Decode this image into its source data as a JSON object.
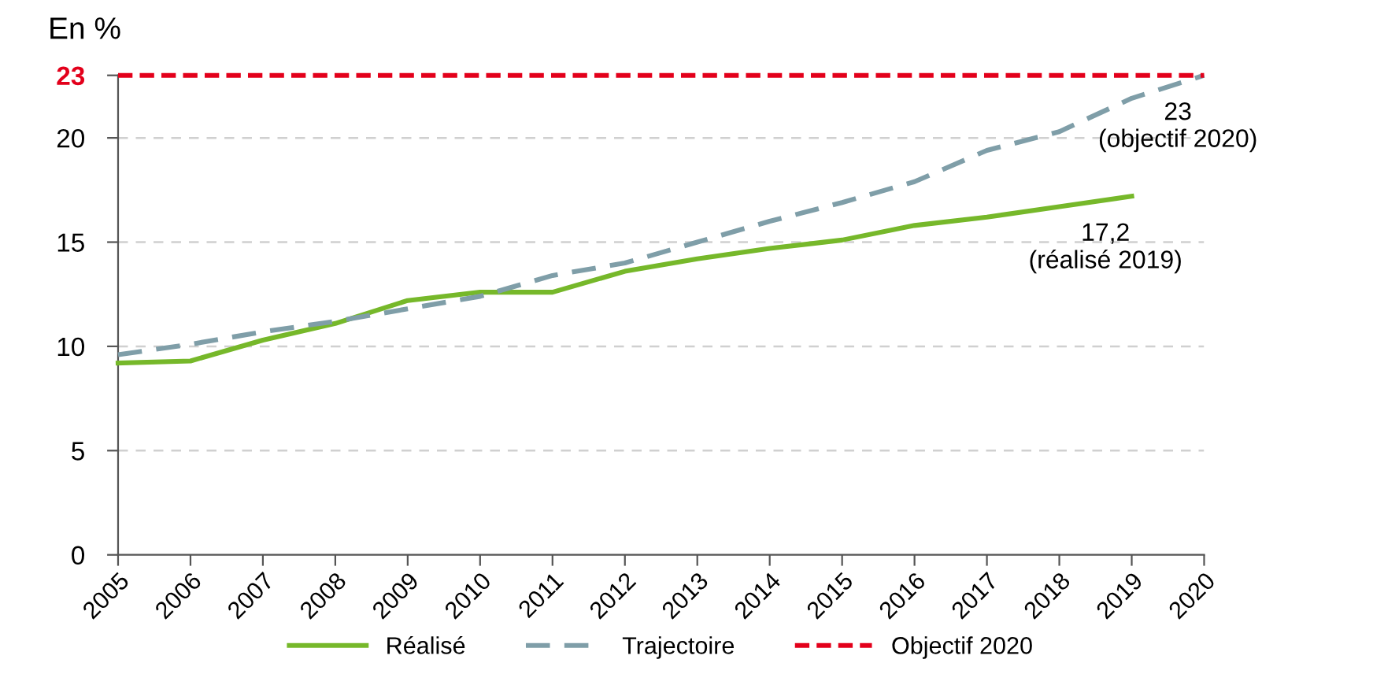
{
  "chart_data": {
    "type": "line",
    "ylabel": "En %",
    "x": [
      2005,
      2006,
      2007,
      2008,
      2009,
      2010,
      2011,
      2012,
      2013,
      2014,
      2015,
      2016,
      2017,
      2018,
      2019,
      2020
    ],
    "series": [
      {
        "name": "Réalisé",
        "color": "#76b82a",
        "line_style": "solid",
        "values": [
          9.2,
          9.3,
          10.3,
          11.1,
          12.2,
          12.6,
          12.6,
          13.6,
          14.2,
          14.7,
          15.1,
          15.8,
          16.2,
          16.7,
          17.2,
          null
        ]
      },
      {
        "name": "Trajectoire",
        "color": "#7f9ea8",
        "line_style": "dashed",
        "values": [
          9.6,
          10.1,
          10.7,
          11.2,
          11.8,
          12.4,
          13.4,
          14.0,
          15.0,
          16.0,
          16.9,
          17.9,
          19.4,
          20.3,
          21.9,
          23
        ]
      }
    ],
    "ref_lines": [
      {
        "axis": "y",
        "value": 23,
        "label": "Objectif 2020",
        "color": "#e3001b",
        "line_style": "dotted"
      }
    ],
    "annotations": [
      {
        "text": "23\n(objectif 2020)",
        "x": 2020,
        "y": 23
      },
      {
        "text": "17,2\n(réalisé 2019)",
        "x": 2019,
        "y": 17.2
      }
    ],
    "xlim": [
      2005,
      2020
    ],
    "xticks": [
      2005,
      2006,
      2007,
      2008,
      2009,
      2010,
      2011,
      2012,
      2013,
      2014,
      2015,
      2016,
      2017,
      2018,
      2019,
      2020
    ],
    "ylim": [
      0,
      23
    ],
    "yticks": [
      0,
      5,
      10,
      15,
      20,
      23
    ],
    "grid": "y",
    "legend": "bottom",
    "marker": "none"
  }
}
